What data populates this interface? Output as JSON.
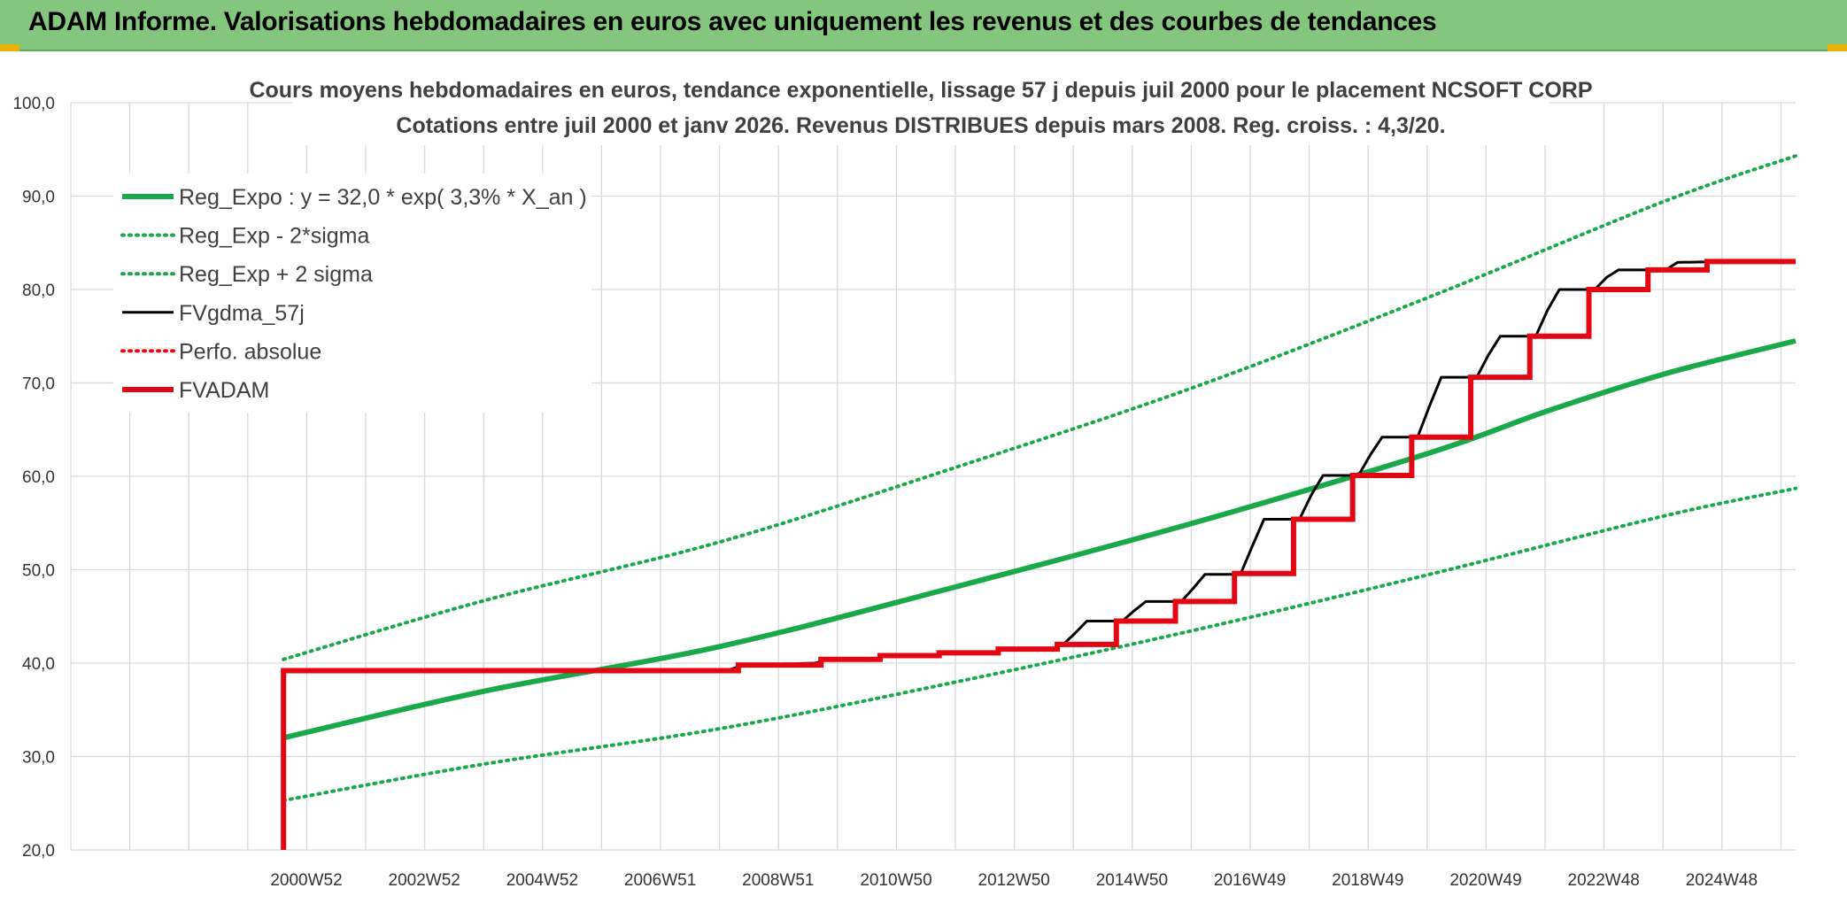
{
  "header": {
    "title": "ADAM Informe. Valorisations hebdomadaires en euros avec uniquement les revenus et des courbes de tendances"
  },
  "colors": {
    "banner": "#84c67d",
    "green": "#1aa94a",
    "black": "#000000",
    "red": "#e30613",
    "grid": "#d9d9d9"
  },
  "chart_data": {
    "type": "line",
    "title": "Cours moyens hebdomadaires en euros, tendance exponentielle, lissage 57 j depuis juil 2000 pour le placement NCSOFT CORP",
    "subtitle": "Cotations entre juil 2000 et janv 2026. Revenus DISTRIBUES depuis mars 2008. Reg. croiss. : 4,3/20.",
    "xlabel": "",
    "ylabel": "",
    "ylim": [
      20,
      100
    ],
    "yticks": [
      "20,0",
      "30,0",
      "40,0",
      "50,0",
      "60,0",
      "70,0",
      "80,0",
      "90,0",
      "100,0"
    ],
    "xticks": [
      "2000W52",
      "2002W52",
      "2004W52",
      "2006W51",
      "2008W51",
      "2010W50",
      "2012W50",
      "2014W50",
      "2016W49",
      "2018W49",
      "2020W49",
      "2022W48",
      "2024W48"
    ],
    "xlim": [
      1997.0,
      2026.2
    ],
    "grid": true,
    "legend_position": "top-left",
    "series": [
      {
        "name": "Reg_Expo : y = 32,0 * exp( 3,3% *  X_an )",
        "style": "solid-thick",
        "color": "#1aa94a",
        "x": [
          2000.6,
          2004,
          2008,
          2012,
          2016,
          2020,
          2022,
          2024,
          2026.2
        ],
        "y": [
          32.0,
          37.0,
          41.8,
          48.2,
          55.0,
          62.5,
          67.0,
          71.0,
          74.5
        ]
      },
      {
        "name": "Reg_Exp - 2*sigma",
        "style": "dotted",
        "color": "#1aa94a",
        "x": [
          2000.6,
          2004,
          2008,
          2012,
          2016,
          2020,
          2024,
          2026.2
        ],
        "y": [
          25.3,
          29.2,
          33.0,
          38.0,
          43.5,
          49.5,
          55.8,
          58.7
        ]
      },
      {
        "name": "Reg_Exp + 2 sigma",
        "style": "dotted",
        "color": "#1aa94a",
        "x": [
          2000.6,
          2004,
          2008,
          2012,
          2016,
          2020,
          2024,
          2026.2
        ],
        "y": [
          40.4,
          46.7,
          53.0,
          61.0,
          69.5,
          79.2,
          89.5,
          94.3
        ]
      },
      {
        "name": "FVgdma_57j",
        "style": "solid",
        "color": "#000000",
        "x": [
          2000.6,
          2008.1,
          2008.4,
          2009.6,
          2009.8,
          2010.6,
          2010.8,
          2011.6,
          2011.8,
          2012.6,
          2012.8,
          2013.6,
          2013.8,
          2014.0,
          2014.2,
          2014.8,
          2015.0,
          2015.2,
          2015.8,
          2016.0,
          2016.2,
          2016.8,
          2017.0,
          2017.2,
          2017.8,
          2018.0,
          2018.2,
          2018.8,
          2019.0,
          2019.2,
          2019.8,
          2020.0,
          2020.2,
          2020.8,
          2021.0,
          2021.2,
          2021.8,
          2022.0,
          2022.2,
          2022.8,
          2023.0,
          2023.2,
          2023.8,
          2024.0,
          2024.2,
          2025.0,
          2025.2,
          2026.2
        ],
        "y": [
          39.2,
          39.2,
          39.8,
          40.0,
          40.4,
          40.4,
          40.8,
          40.8,
          41.1,
          41.1,
          41.5,
          41.5,
          42.0,
          43.2,
          44.5,
          44.5,
          45.6,
          46.6,
          46.6,
          48.0,
          49.5,
          49.5,
          52.5,
          55.4,
          55.4,
          58.0,
          60.1,
          60.1,
          62.3,
          64.2,
          64.2,
          67.5,
          70.6,
          70.6,
          73.0,
          75.0,
          75.0,
          77.8,
          80.0,
          80.0,
          81.3,
          82.1,
          82.1,
          82.1,
          82.9,
          83.0,
          83.0,
          83.0
        ]
      },
      {
        "name": "Perfo. absolue",
        "style": "dotted",
        "color": "#e30613",
        "x": [],
        "y": []
      },
      {
        "name": "FVADAM",
        "style": "solid-thick",
        "color": "#e30613",
        "x": [
          2000.6,
          2000.6,
          2000.6,
          2008.3,
          2008.3,
          2009.7,
          2009.7,
          2010.7,
          2010.7,
          2011.7,
          2011.7,
          2012.7,
          2012.7,
          2013.7,
          2013.7,
          2014.7,
          2014.7,
          2015.7,
          2015.7,
          2016.7,
          2016.7,
          2017.7,
          2017.7,
          2018.7,
          2018.7,
          2019.7,
          2019.7,
          2020.7,
          2020.7,
          2021.7,
          2021.7,
          2022.7,
          2022.7,
          2023.7,
          2023.7,
          2024.7,
          2024.7,
          2026.2
        ],
        "y": [
          20.0,
          39.2,
          39.2,
          39.2,
          39.8,
          39.8,
          40.4,
          40.4,
          40.8,
          40.8,
          41.1,
          41.1,
          41.5,
          41.5,
          42.0,
          42.0,
          44.5,
          44.5,
          46.6,
          46.6,
          49.6,
          49.6,
          55.4,
          55.4,
          60.1,
          60.1,
          64.2,
          64.2,
          70.6,
          70.6,
          75.0,
          75.0,
          80.0,
          80.0,
          82.1,
          82.1,
          83.0,
          83.0
        ]
      }
    ]
  }
}
